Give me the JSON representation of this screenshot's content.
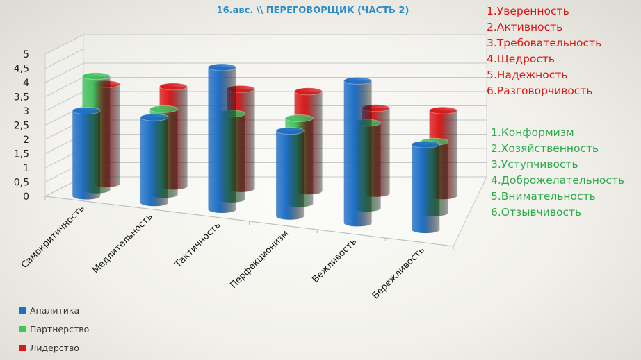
{
  "title": "16.авс. \\\\ ПЕРЕГОВОРЩИК (ЧАСТЬ 2)",
  "red_list": [
    "1.Уверенность",
    "2.Активность",
    "3.Требовательность",
    "4.Щедрость",
    "5.Надежность",
    "6.Разговорчивость"
  ],
  "green_list": [
    "1.Конформизм",
    "2.Хозяйственность",
    "3.Уступчивость",
    "4.Доброжелательность",
    "5.Внимательность",
    "6.Отзывчивость"
  ],
  "colors": {
    "blue": "#1f6fc5",
    "green": "#46c160",
    "red": "#d81a1a",
    "red_text": "#e01414",
    "green_text": "#2eaa4e",
    "title": "#2e8bc9"
  },
  "chart_data": {
    "type": "bar",
    "subtype": "3d-cylinder",
    "categories": [
      "Самокритичность",
      "Медлительность",
      "Тактичность",
      "Перфекционизм",
      "Вежливость",
      "Бережливость"
    ],
    "series": [
      {
        "name": "Аналитика",
        "color": "#1f6fc5",
        "values": [
          3.0,
          3.0,
          5.0,
          3.0,
          5.0,
          3.0
        ]
      },
      {
        "name": "Партнерство",
        "color": "#46c160",
        "values": [
          4.0,
          3.0,
          3.0,
          3.0,
          3.0,
          2.5
        ]
      },
      {
        "name": "Лидерство",
        "color": "#d81a1a",
        "values": [
          3.5,
          3.5,
          3.5,
          3.5,
          3.0,
          3.0
        ]
      }
    ],
    "yticks": [
      "0",
      "0,5",
      "1",
      "1,5",
      "2",
      "2,5",
      "3",
      "3,5",
      "4",
      "4,5",
      "5"
    ],
    "ylim": [
      0,
      5
    ],
    "legend_position": "bottom-left",
    "grid": true
  }
}
